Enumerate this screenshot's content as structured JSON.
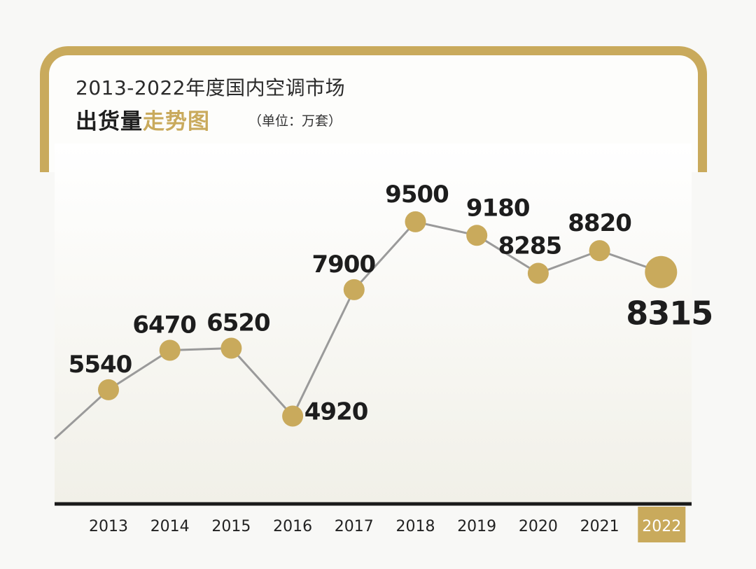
{
  "header": {
    "title_line1": "2013-2022年度国内空调市场",
    "title_dark": "出货量",
    "title_gold": "走势图",
    "unit": "（单位：万套）"
  },
  "colors": {
    "accent": "#c9aa5c",
    "line": "#9a9a9a",
    "axis": "#1a1a1a",
    "text": "#1d1d1d"
  },
  "chart_data": {
    "type": "line",
    "categories": [
      "2013",
      "2014",
      "2015",
      "2016",
      "2017",
      "2018",
      "2019",
      "2020",
      "2021",
      "2022"
    ],
    "values": [
      5540,
      6470,
      6520,
      4920,
      7900,
      9500,
      9180,
      8285,
      8820,
      8315
    ],
    "labels": [
      "5540",
      "6470",
      "6520",
      "4920",
      "7900",
      "9500",
      "9180",
      "8285",
      "8820",
      "8315"
    ],
    "highlight": "2022",
    "title": "2013-2022年度国内空调市场出货量走势图",
    "ylabel": "（单位：万套）",
    "xlabel": "",
    "grid": false,
    "legend": "none"
  }
}
